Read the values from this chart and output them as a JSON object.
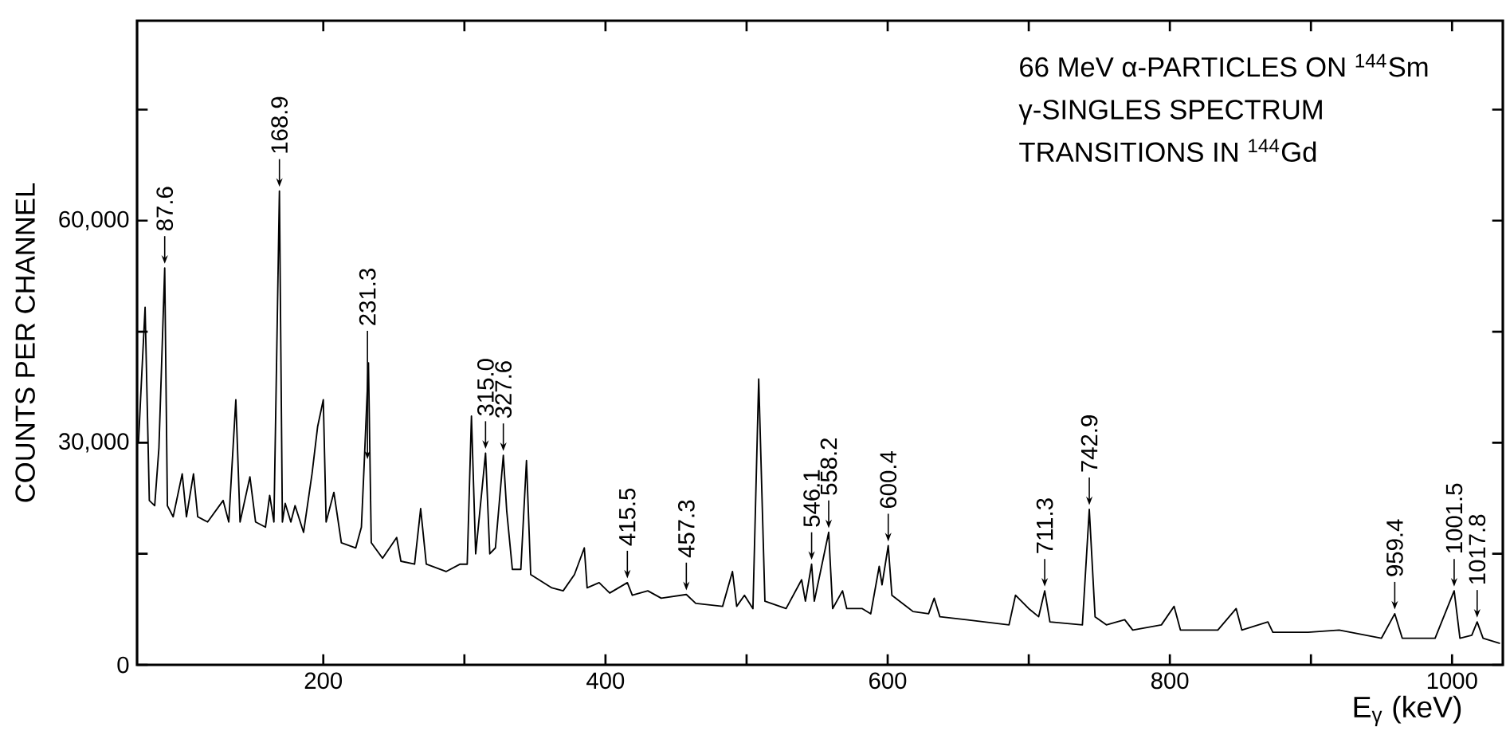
{
  "chart_data": {
    "type": "line",
    "title": "66 MeV α-PARTICLES ON $^{144}$Sm",
    "subtitle": "γ-SINGLES SPECTRUM",
    "xlabel": "E$_{γ}$ (keV)",
    "ylabel": "COUNTS PER CHANNEL",
    "annotations": [
      "TRANSITIONS IN $^{144}$Gd",
      {
        "text": "87.6",
        "x": 87.6,
        "y": 53600
      },
      {
        "text": "168.9",
        "x": 168.9,
        "y": 64000
      },
      {
        "text": "231.3",
        "x": 231.3,
        "y": 27200
      },
      {
        "text": "315.0",
        "x": 315.0,
        "y": 28600
      },
      {
        "text": "327.6",
        "x": 327.6,
        "y": 28300
      },
      {
        "text": "415.5",
        "x": 415.5,
        "y": 11100
      },
      {
        "text": "457.3",
        "x": 457.3,
        "y": 9500
      },
      {
        "text": "546.1",
        "x": 546.1,
        "y": 13600
      },
      {
        "text": "558.2",
        "x": 558.2,
        "y": 17900
      },
      {
        "text": "600.4",
        "x": 600.4,
        "y": 16100
      },
      {
        "text": "711.3",
        "x": 711.3,
        "y": 10000
      },
      {
        "text": "742.9",
        "x": 742.9,
        "y": 21000
      },
      {
        "text": "959.4",
        "x": 959.4,
        "y": 6900
      },
      {
        "text": "1001.5",
        "x": 1001.5,
        "y": 10000
      },
      {
        "text": "1017.8",
        "x": 1017.8,
        "y": 5800
      }
    ],
    "x": [
      69,
      71,
      73.7,
      76.7,
      80.5,
      83.5,
      87.6,
      89.5,
      93.6,
      100,
      103,
      108,
      111,
      118,
      129,
      133,
      138,
      141,
      148,
      152,
      159,
      162,
      165,
      168.9,
      171,
      173,
      177,
      180,
      186,
      192,
      196,
      200,
      202,
      207.5,
      212.8,
      223,
      227,
      229,
      232,
      234,
      242,
      252,
      255,
      264.7,
      269,
      273,
      287,
      297,
      302,
      305,
      308,
      315,
      318,
      322,
      327.6,
      330,
      334,
      340,
      344,
      347,
      362,
      370,
      378,
      385,
      387,
      395.5,
      403,
      415.5,
      419,
      430,
      439.5,
      457.3,
      464,
      483,
      490,
      493,
      498.5,
      504.5,
      508.6,
      513,
      528,
      539,
      541.7,
      546.1,
      548,
      558.2,
      561,
      568,
      571,
      582,
      588,
      594,
      596,
      600.4,
      603,
      618,
      629,
      633,
      637,
      655.6,
      686,
      690.6,
      700,
      707,
      711.3,
      715,
      738,
      742.9,
      747,
      755,
      768,
      773.7,
      794,
      803,
      807.5,
      834,
      847,
      851,
      869.5,
      873,
      898,
      920,
      950,
      959.4,
      964.7,
      988,
      1001.5,
      1005.6,
      1014,
      1017.8,
      1022,
      1034
    ],
    "series": [
      {
        "color": "#000000",
        "values": [
          30000,
          37900,
          48300,
          22200,
          21500,
          29300,
          53600,
          21500,
          20000,
          25800,
          20000,
          25800,
          20000,
          19300,
          22200,
          19300,
          35800,
          19300,
          25400,
          19300,
          18600,
          22900,
          19300,
          64000,
          19300,
          21800,
          19300,
          21500,
          17900,
          25800,
          32200,
          35800,
          19300,
          23300,
          16500,
          15800,
          18600,
          27200,
          40800,
          16500,
          14400,
          17200,
          14000,
          13600,
          21100,
          13600,
          12600,
          13600,
          13600,
          33600,
          15000,
          28600,
          15000,
          15800,
          28300,
          20800,
          12900,
          12900,
          27600,
          12200,
          10400,
          10000,
          12200,
          15800,
          10400,
          11100,
          9700,
          11100,
          9400,
          10000,
          9000,
          9500,
          8300,
          7900,
          12600,
          7900,
          9400,
          7600,
          38600,
          8600,
          7600,
          11500,
          8600,
          13600,
          8600,
          17900,
          7600,
          10000,
          7600,
          7600,
          6900,
          13300,
          10800,
          16100,
          9400,
          7200,
          6900,
          9000,
          6500,
          6100,
          5400,
          9400,
          7600,
          6500,
          10000,
          5800,
          5400,
          21000,
          6500,
          5400,
          6100,
          4700,
          5400,
          7900,
          4700,
          4700,
          7600,
          4700,
          5800,
          4400,
          4400,
          4700,
          3600,
          6900,
          3600,
          3600,
          10000,
          3600,
          4000,
          5800,
          3600,
          2900
        ]
      }
    ],
    "xlim": [
      68,
      1036
    ],
    "ylim": [
      0,
      87000
    ],
    "xticks": [
      200,
      {
        "value": 300,
        "label": null
      },
      400,
      {
        "value": 500,
        "label": null
      },
      600,
      {
        "value": 700,
        "label": null
      },
      800,
      {
        "value": 900,
        "label": null
      },
      1000
    ],
    "yticks": [
      0,
      {
        "value": 15000,
        "label": null
      },
      {
        "value": 30000,
        "label": "30,000"
      },
      {
        "value": 45000,
        "label": null
      },
      {
        "value": 60000,
        "label": "60,000"
      },
      {
        "value": 75000,
        "label": null
      }
    ]
  }
}
